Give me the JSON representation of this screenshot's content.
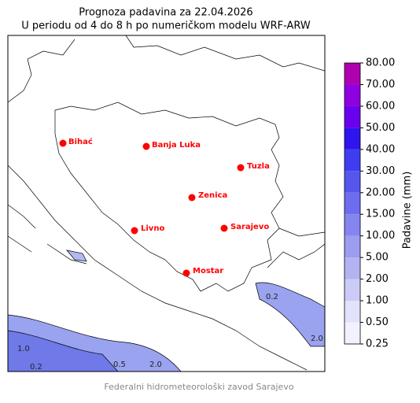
{
  "header": {
    "title": "Prognoza padavina za 22.04.2026",
    "subtitle": "U periodu od 4 do 8 h po numeričkom modelu WRF-ARW"
  },
  "cities": [
    "Bihać",
    "Banja Luka",
    "Tuzla",
    "Zenica",
    "Livno",
    "Sarajevo",
    "Mostar"
  ],
  "contour_labels": [
    "0.2",
    "1.0",
    "0.5",
    "2.0",
    "0.2",
    "2.0"
  ],
  "colorbar": {
    "label": "Padavine (mm)",
    "ticks": [
      {
        "value": 0.25,
        "label": "0.25"
      },
      {
        "value": 0.5,
        "label": "0.50"
      },
      {
        "value": 1,
        "label": "1.00"
      },
      {
        "value": 2,
        "label": "2.00"
      },
      {
        "value": 5,
        "label": "5.00"
      },
      {
        "value": 10,
        "label": "10.00"
      },
      {
        "value": 15,
        "label": "15.00"
      },
      {
        "value": 20,
        "label": "20.00"
      },
      {
        "value": 30,
        "label": "30.00"
      },
      {
        "value": 40,
        "label": "40.00"
      },
      {
        "value": 50,
        "label": "50.00"
      },
      {
        "value": 60,
        "label": "60.00"
      },
      {
        "value": 70,
        "label": "70.00"
      },
      {
        "value": 80,
        "label": "80.00"
      }
    ],
    "colors": [
      "#f2f2fe",
      "#e2e2fb",
      "#cbcbf6",
      "#b3b3f2",
      "#9c9cf0",
      "#8585ef",
      "#6d6def",
      "#5656ef",
      "#3e3ef0",
      "#2f14ee",
      "#6a00ee",
      "#8e00e0",
      "#b000b0"
    ]
  },
  "footer": "Federalni hidrometeorološki zavod Sarajevo"
}
